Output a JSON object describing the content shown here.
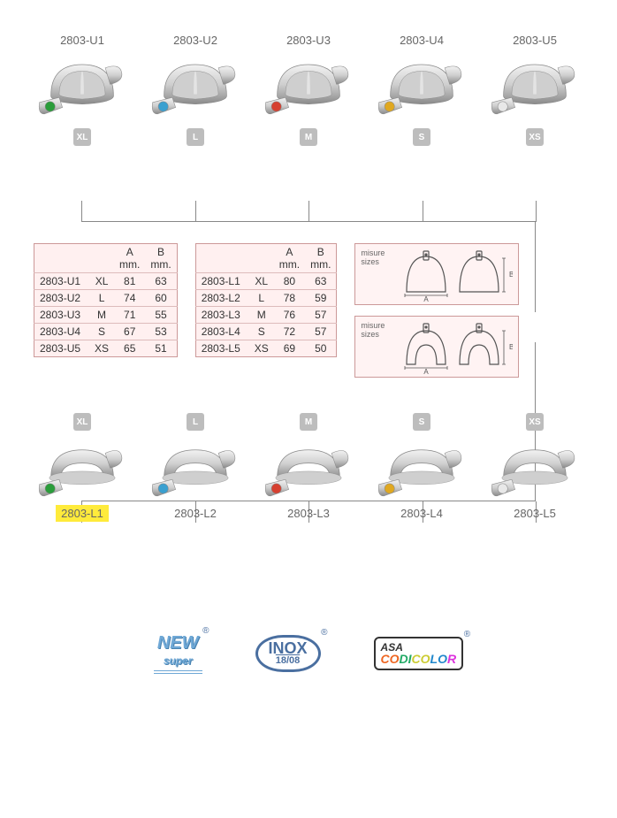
{
  "colors": {
    "green": "#2a9d3a",
    "blue": "#3aa0d0",
    "red": "#d64030",
    "yellow": "#e0a820",
    "white": "#e8e8e8",
    "metal_light": "#f2f2f2",
    "metal_mid": "#cfcfcf",
    "metal_dark": "#8a8a8a",
    "badge": "#bdbdbd",
    "table_border": "#c99",
    "table_bg": "#fff0f0",
    "hl": "#ffeb3b"
  },
  "top_products": [
    {
      "code": "2803-U1",
      "size": "XL",
      "dot": "green"
    },
    {
      "code": "2803-U2",
      "size": "L",
      "dot": "blue"
    },
    {
      "code": "2803-U3",
      "size": "M",
      "dot": "red"
    },
    {
      "code": "2803-U4",
      "size": "S",
      "dot": "yellow"
    },
    {
      "code": "2803-U5",
      "size": "XS",
      "dot": "white"
    }
  ],
  "bottom_products": [
    {
      "code": "2803-L1",
      "size": "XL",
      "dot": "green",
      "hl": true
    },
    {
      "code": "2803-L2",
      "size": "L",
      "dot": "blue"
    },
    {
      "code": "2803-L3",
      "size": "M",
      "dot": "red"
    },
    {
      "code": "2803-L4",
      "size": "S",
      "dot": "yellow"
    },
    {
      "code": "2803-L5",
      "size": "XS",
      "dot": "white"
    }
  ],
  "table_headers": {
    "col1": "",
    "col2": "",
    "a": "A",
    "b": "B",
    "mm": "mm."
  },
  "table_left": [
    [
      "2803-U1",
      "XL",
      "81",
      "63"
    ],
    [
      "2803-U2",
      "L",
      "74",
      "60"
    ],
    [
      "2803-U3",
      "M",
      "71",
      "55"
    ],
    [
      "2803-U4",
      "S",
      "67",
      "53"
    ],
    [
      "2803-U5",
      "XS",
      "65",
      "51"
    ]
  ],
  "table_right": [
    [
      "2803-L1",
      "XL",
      "80",
      "63"
    ],
    [
      "2803-L2",
      "L",
      "78",
      "59"
    ],
    [
      "2803-L3",
      "M",
      "76",
      "57"
    ],
    [
      "2803-L4",
      "S",
      "72",
      "57"
    ],
    [
      "2803-L5",
      "XS",
      "69",
      "50"
    ]
  ],
  "diagram_label": {
    "it": "misure",
    "en": "sizes"
  },
  "logos": {
    "new": {
      "line1": "NEW",
      "line2": "super"
    },
    "inox": {
      "line1": "INOX",
      "line2": "18/08"
    },
    "codicolor": {
      "brand": "ASA",
      "word": "CODICOLOR"
    }
  }
}
